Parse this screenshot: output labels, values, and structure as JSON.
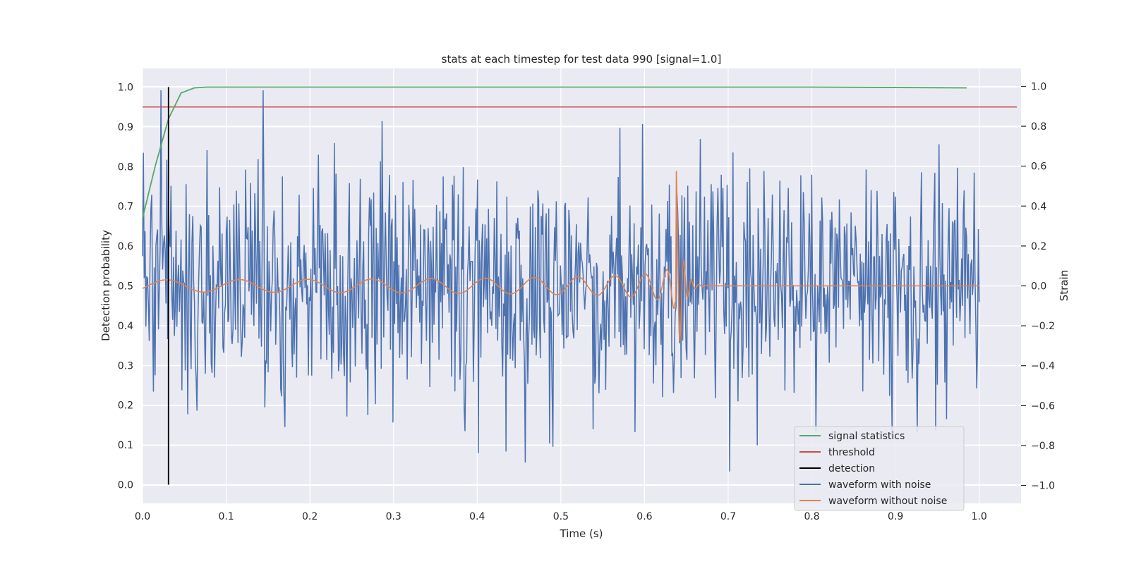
{
  "chart_data": {
    "type": "line",
    "title": "stats at each timestep for test data 990 [signal=1.0]",
    "xlabel": "Time (s)",
    "ylabel": "Detection probability",
    "y2label": "Strain",
    "xlim": [
      0.0,
      1.05
    ],
    "ylim": [
      -0.047,
      1.047
    ],
    "y2lim": [
      -1.09,
      1.09
    ],
    "x_ticks": [
      "0.0",
      "0.1",
      "0.2",
      "0.3",
      "0.4",
      "0.5",
      "0.6",
      "0.7",
      "0.8",
      "0.9",
      "1.0"
    ],
    "y_ticks": [
      "0.0",
      "0.1",
      "0.2",
      "0.3",
      "0.4",
      "0.5",
      "0.6",
      "0.7",
      "0.8",
      "0.9",
      "1.0"
    ],
    "y2_ticks": [
      "−1.0",
      "−0.8",
      "−0.6",
      "−0.4",
      "−0.2",
      "0.0",
      "0.2",
      "0.4",
      "0.6",
      "0.8",
      "1.0"
    ],
    "grid": true,
    "legend_position": "lower-right",
    "colors": {
      "signal_statistics": "#55a868",
      "threshold": "#c44e52",
      "detection": "#000000",
      "waveform_with_noise": "#4c72b0",
      "waveform_without_noise": "#dd8452",
      "background": "#eaeaf2",
      "grid": "#ffffff"
    },
    "series": [
      {
        "name": "signal statistics",
        "axis": "left",
        "x": [
          0.0,
          0.015,
          0.031,
          0.046,
          0.062,
          0.077,
          0.1,
          0.2,
          0.4,
          0.6,
          0.8,
          0.9,
          0.985
        ],
        "y": [
          0.67,
          0.8,
          0.92,
          0.985,
          0.998,
          1.0,
          1.0,
          1.0,
          1.0,
          1.0,
          1.0,
          0.999,
          0.998
        ]
      },
      {
        "name": "threshold",
        "axis": "left",
        "x": [
          0.0,
          1.045
        ],
        "y": [
          0.95,
          0.95
        ]
      },
      {
        "name": "detection",
        "axis": "left",
        "x": [
          0.031,
          0.031
        ],
        "y": [
          0.0,
          1.0
        ]
      },
      {
        "name": "waveform with noise",
        "axis": "right",
        "x_range": [
          0.0,
          1.0
        ],
        "y_range": [
          -0.93,
          0.98
        ],
        "samples": 1000
      },
      {
        "name": "waveform without noise",
        "axis": "right",
        "x_range": [
          0.0,
          1.0
        ],
        "amplitude_start": 0.03,
        "amplitude_peak": 0.58,
        "peak_time": 0.638,
        "post_merger_value": 0.0
      }
    ],
    "legend": [
      {
        "label": "signal statistics",
        "key": "signal_statistics"
      },
      {
        "label": "threshold",
        "key": "threshold"
      },
      {
        "label": "detection",
        "key": "detection"
      },
      {
        "label": "waveform with noise",
        "key": "waveform_with_noise"
      },
      {
        "label": "waveform without noise",
        "key": "waveform_without_noise"
      }
    ]
  }
}
